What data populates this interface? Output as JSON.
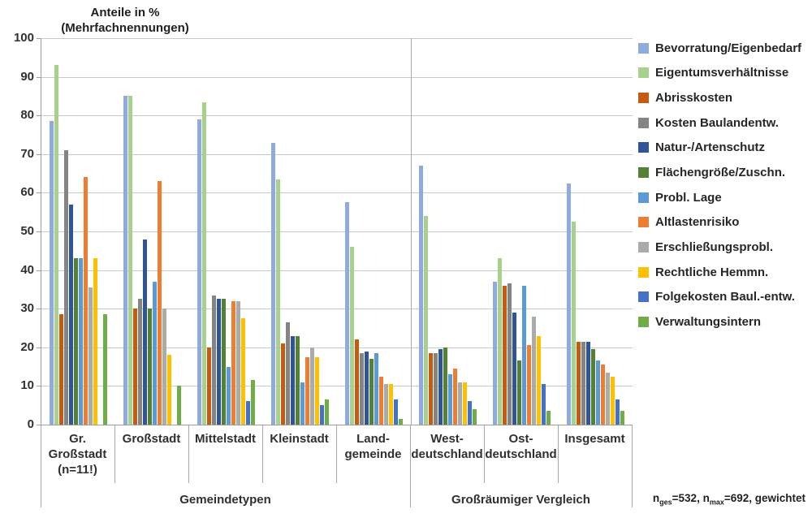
{
  "header": {
    "title_line1": "Anteile in %",
    "title_line2": "(Mehrfachnennungen)"
  },
  "footnote": {
    "p1": "n",
    "sub1": "ges",
    "p2": "=532, n",
    "sub2": "max",
    "p3": "=692, gewichtet"
  },
  "chart_data": {
    "type": "bar",
    "title": "Anteile in % (Mehrfachnennungen)",
    "xlabel": "",
    "ylabel": "Anteile in %",
    "ylim": [
      0,
      100
    ],
    "ytick_step": 10,
    "grid": true,
    "legend_position": "right",
    "categories": [
      {
        "label": "Gr. Großstadt (n=11!)",
        "lines": [
          "Gr.",
          "Großstadt",
          "(n=11!)"
        ]
      },
      {
        "label": "Großstadt",
        "lines": [
          "Großstadt"
        ]
      },
      {
        "label": "Mittelstadt",
        "lines": [
          "Mittelstadt"
        ]
      },
      {
        "label": "Kleinstadt",
        "lines": [
          "Kleinstadt"
        ]
      },
      {
        "label": "Landgemeinde",
        "lines": [
          "Land-",
          "gemeinde"
        ]
      },
      {
        "label": "Westdeutschland",
        "lines": [
          "West-",
          "deutschland"
        ]
      },
      {
        "label": "Ostdeutschland",
        "lines": [
          "Ost-",
          "deutschland"
        ]
      },
      {
        "label": "Insgesamt",
        "lines": [
          "Insgesamt"
        ]
      }
    ],
    "axis_groups": [
      {
        "label": "Gemeindetypen",
        "from": 0,
        "to": 5
      },
      {
        "label": "Großräumiger Vergleich",
        "from": 5,
        "to": 8
      }
    ],
    "series": [
      {
        "name": "Bevorratung/Eigenbedarf",
        "color": "#8FAADC",
        "values": [
          78.5,
          85,
          79,
          73,
          57.5,
          67,
          37,
          62.5
        ]
      },
      {
        "name": "Eigentumsverhältnisse",
        "color": "#A9D18E",
        "values": [
          93,
          85,
          83.5,
          63.5,
          46,
          54,
          43,
          52.5
        ]
      },
      {
        "name": "Abrisskosten",
        "color": "#C55A11",
        "values": [
          28.5,
          30,
          20,
          21,
          22,
          18.5,
          36,
          21.5
        ]
      },
      {
        "name": "Kosten Baulandentw.",
        "color": "#848484",
        "values": [
          71,
          32.5,
          33.5,
          26.5,
          18.5,
          18.5,
          36.5,
          21.5
        ]
      },
      {
        "name": "Natur-/Artenschutz",
        "color": "#2F5597",
        "values": [
          57,
          48,
          32.5,
          23,
          19,
          19.5,
          29,
          21.5
        ]
      },
      {
        "name": "Flächengröße/Zuschn.",
        "color": "#548235",
        "values": [
          43,
          30,
          32.5,
          23,
          17,
          20,
          16.5,
          19.5
        ]
      },
      {
        "name": "Probl. Lage",
        "color": "#5B9BD5",
        "values": [
          43,
          37,
          15,
          11,
          18.5,
          13,
          36,
          16.5
        ]
      },
      {
        "name": "Altlastenrisiko",
        "color": "#ED7D31",
        "values": [
          64,
          63,
          32,
          17.5,
          12.5,
          14.5,
          20.5,
          15.5
        ]
      },
      {
        "name": "Erschließungsprobl.",
        "color": "#ABABAB",
        "values": [
          35.5,
          30,
          32,
          20,
          10.5,
          11,
          28,
          13.5
        ]
      },
      {
        "name": "Rechtliche Hemmn.",
        "color": "#FFC000",
        "values": [
          43,
          18,
          27.5,
          17.5,
          10.5,
          11,
          23,
          12.5
        ]
      },
      {
        "name": "Folgekosten Baul.-entw.",
        "color": "#4472C4",
        "values": [
          0,
          0,
          6,
          5,
          6.5,
          6,
          10.5,
          6.5
        ]
      },
      {
        "name": "Verwaltungsintern",
        "color": "#70AD47",
        "values": [
          28.5,
          10,
          11.5,
          6.5,
          1.5,
          4,
          3.5,
          3.5
        ]
      }
    ]
  }
}
